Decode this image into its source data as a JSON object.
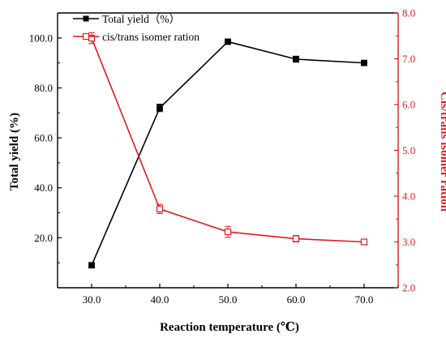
{
  "chart_data": {
    "type": "line",
    "xlabel": "Reaction  temperature (℃)",
    "x": [
      30.0,
      40.0,
      50.0,
      60.0,
      70.0
    ],
    "x_tick_labels": [
      "30.0",
      "40.0",
      "50.0",
      "60.0",
      "70.0"
    ],
    "xlim": [
      25,
      75
    ],
    "y_left": {
      "label": "Total yield (%)",
      "ylim": [
        0,
        110
      ],
      "tick_values": [
        20,
        40,
        60,
        80,
        100
      ],
      "tick_labels": [
        "20.0",
        "40.0",
        "60.0",
        "80.0",
        "100.0"
      ]
    },
    "y_right": {
      "label": "Cis/trans isomer ration",
      "ylim": [
        2.0,
        8.0
      ],
      "tick_values": [
        2,
        3,
        4,
        5,
        6,
        7,
        8
      ],
      "tick_labels": [
        "2.0",
        "3.0",
        "4.0",
        "5.0",
        "6.0",
        "7.0",
        "8.0"
      ]
    },
    "series": [
      {
        "name": "Total yield（%）",
        "axis": "left",
        "marker": "filled-square",
        "color": "#000000",
        "values": [
          9.0,
          72.0,
          98.5,
          91.5,
          90.0
        ],
        "errors": [
          1.0,
          1.5,
          0.8,
          1.2,
          0.8
        ]
      },
      {
        "name": "cis/trans isomer ration",
        "axis": "right",
        "marker": "open-square",
        "color": "#e31a1c",
        "values": [
          7.45,
          3.72,
          3.22,
          3.07,
          3.0
        ],
        "errors": [
          0.12,
          0.1,
          0.12,
          0.07,
          0.04
        ]
      }
    ],
    "legend_position": "top-left",
    "grid": false
  }
}
